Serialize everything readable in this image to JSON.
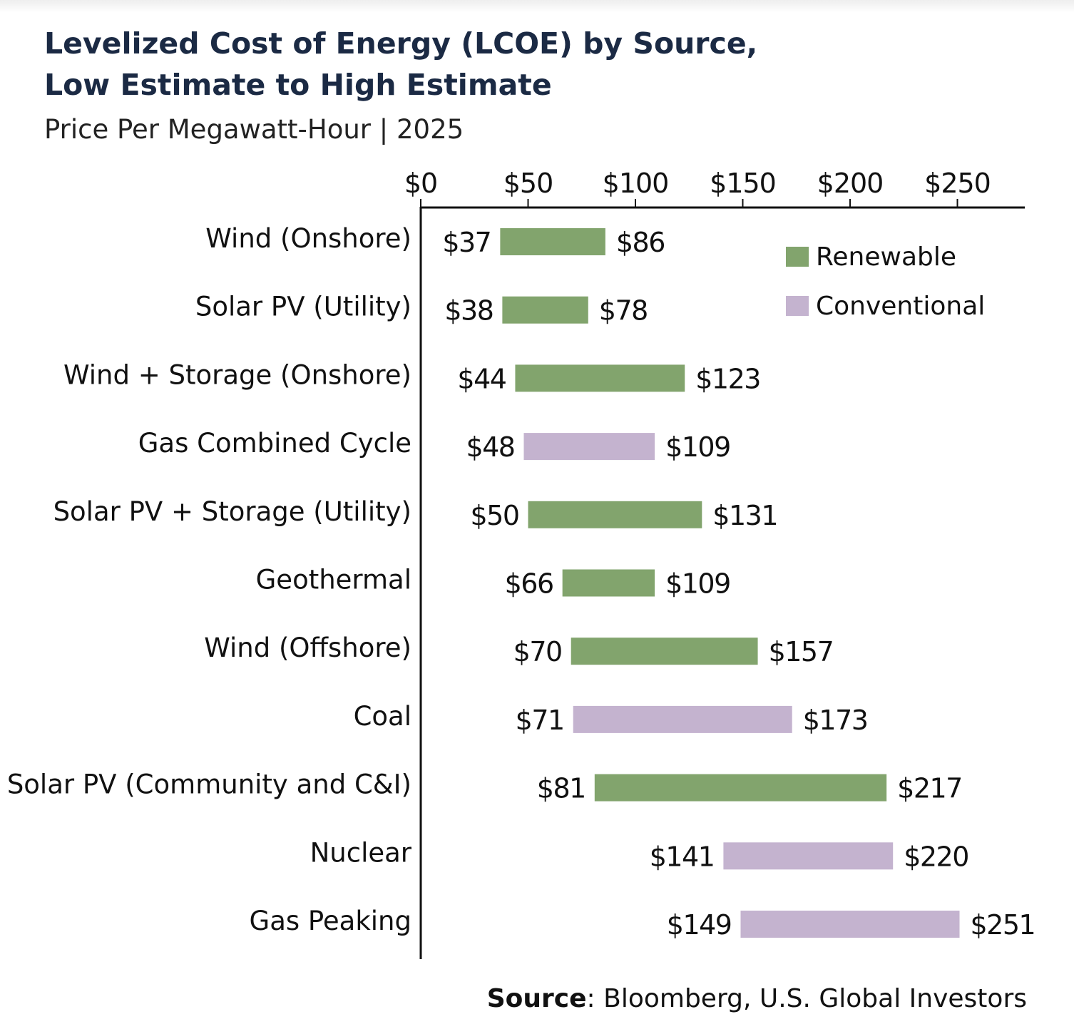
{
  "title_line1": "Levelized Cost of Energy (LCOE) by Source,",
  "title_line2": "Low Estimate to High Estimate",
  "subtitle": "Price Per Megawatt-Hour | 2025",
  "source_label": "Source",
  "source_text": ": Bloomberg, U.S. Global Investors",
  "colors": {
    "renewable": "#82a46d",
    "conventional": "#c4b3cf",
    "title": "#1b2a44",
    "axis": "#111111"
  },
  "legend": [
    {
      "key": "renewable",
      "label": "Renewable"
    },
    {
      "key": "conventional",
      "label": "Conventional"
    }
  ],
  "chart_data": {
    "type": "bar",
    "orientation": "horizontal-range",
    "title": "Levelized Cost of Energy (LCOE) by Source, Low Estimate to High Estimate",
    "subtitle": "Price Per Megawatt-Hour | 2025",
    "xlim": [
      0,
      280
    ],
    "x_ticks": [
      0,
      50,
      100,
      150,
      200,
      250
    ],
    "x_tick_labels": [
      "$0",
      "$50",
      "$100",
      "$150",
      "$200",
      "$250"
    ],
    "x_axis_position": "top",
    "grid": false,
    "legend_position": "top-right",
    "categories": [
      "Wind (Onshore)",
      "Solar PV (Utility)",
      "Wind + Storage (Onshore)",
      "Gas Combined Cycle",
      "Solar PV + Storage (Utility)",
      "Geothermal",
      "Wind (Offshore)",
      "Coal",
      "Solar PV (Community and C&I)",
      "Nuclear",
      "Gas Peaking"
    ],
    "low": [
      37,
      38,
      44,
      48,
      50,
      66,
      70,
      71,
      81,
      141,
      149
    ],
    "high": [
      86,
      78,
      123,
      109,
      131,
      109,
      157,
      173,
      217,
      220,
      251
    ],
    "low_labels": [
      "$37",
      "$38",
      "$44",
      "$48",
      "$50",
      "$66",
      "$70",
      "$71",
      "$81",
      "$141",
      "$149"
    ],
    "high_labels": [
      "$86",
      "$78",
      "$123",
      "$109",
      "$131",
      "$109",
      "$157",
      "$173",
      "$217",
      "$220",
      "$251"
    ],
    "group": [
      "renewable",
      "renewable",
      "renewable",
      "conventional",
      "renewable",
      "renewable",
      "renewable",
      "conventional",
      "renewable",
      "conventional",
      "conventional"
    ]
  }
}
